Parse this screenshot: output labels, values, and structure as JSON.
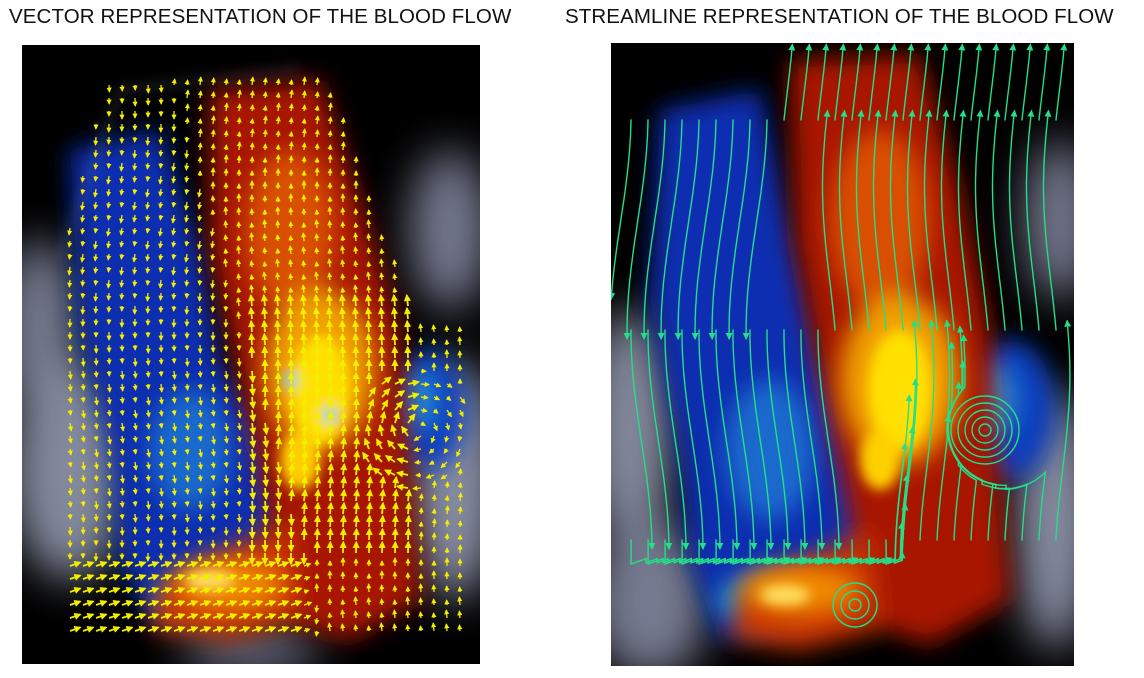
{
  "figure": {
    "left_title": "VECTOR REPRESENTATION OF THE BLOOD FLOW",
    "right_title": "STREAMLINE REPRESENTATION OF THE BLOOD FLOW"
  },
  "colors": {
    "background": "#000000",
    "tissue": "#8a8fa8",
    "flow_toward": "#b01a00",
    "flow_peak": "#ffe000",
    "flow_away": "#0a2fb0",
    "flow_away_peak": "#1fa0d8",
    "vector_arrows": "#f2ee00",
    "streamlines": "#22e08a"
  }
}
